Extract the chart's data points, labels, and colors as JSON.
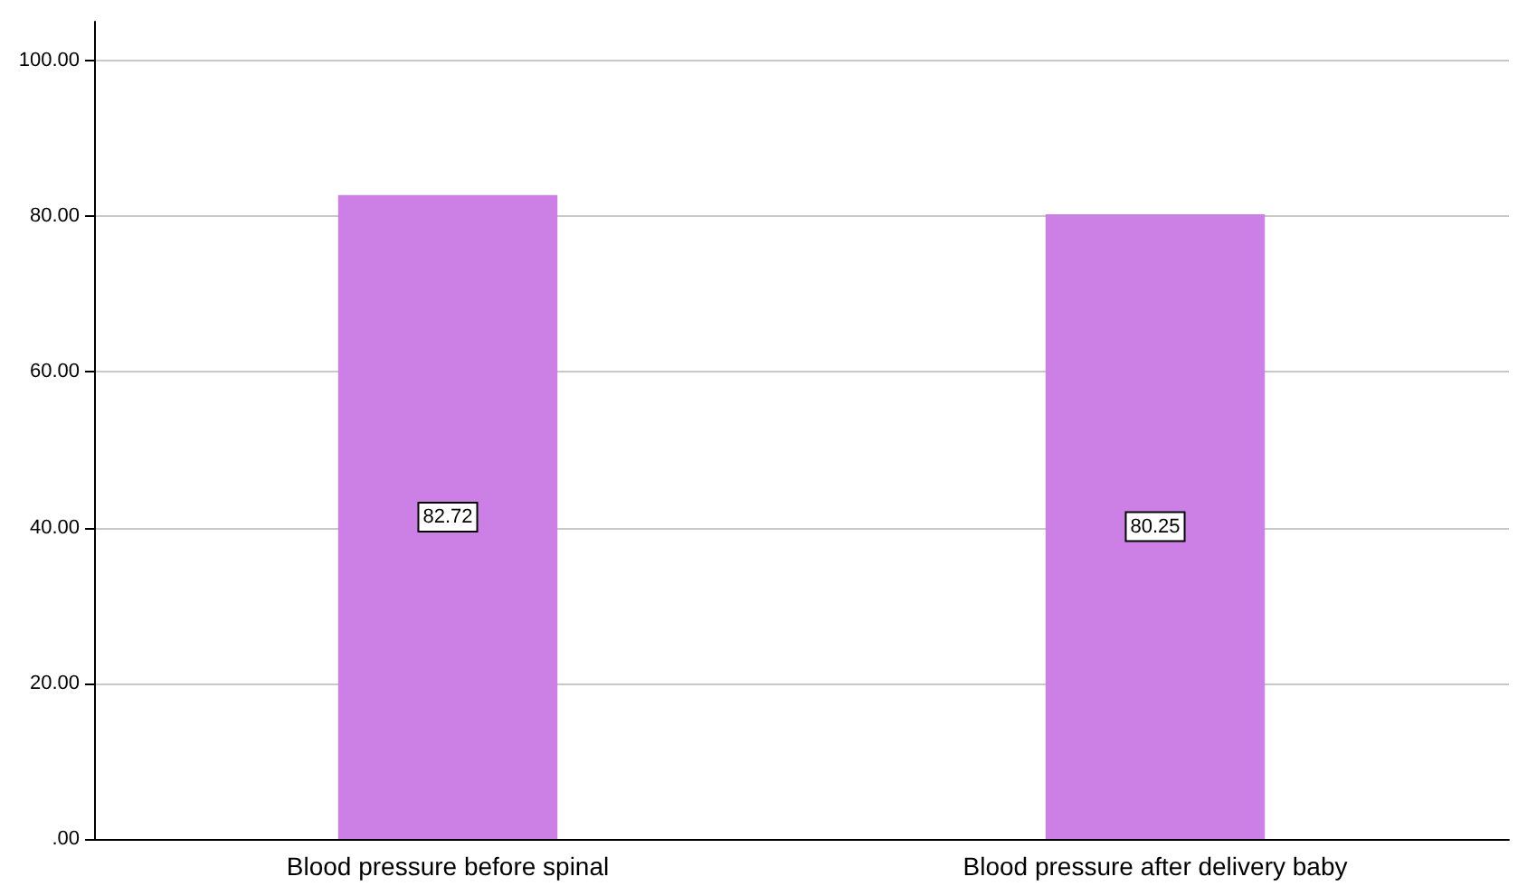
{
  "chart_data": {
    "type": "bar",
    "categories": [
      "Blood pressure before spinal",
      "Blood pressure after delivery baby"
    ],
    "values": [
      82.72,
      80.25
    ],
    "color": "#cc80e6",
    "ylim": [
      0,
      105
    ],
    "yticks": [
      {
        "value": 0,
        "label": ".00"
      },
      {
        "value": 20,
        "label": "20.00"
      },
      {
        "value": 40,
        "label": "40.00"
      },
      {
        "value": 60,
        "label": "60.00"
      },
      {
        "value": 80,
        "label": "80.00"
      },
      {
        "value": 100,
        "label": "100.00"
      }
    ],
    "grid": "y",
    "data_labels": true
  }
}
